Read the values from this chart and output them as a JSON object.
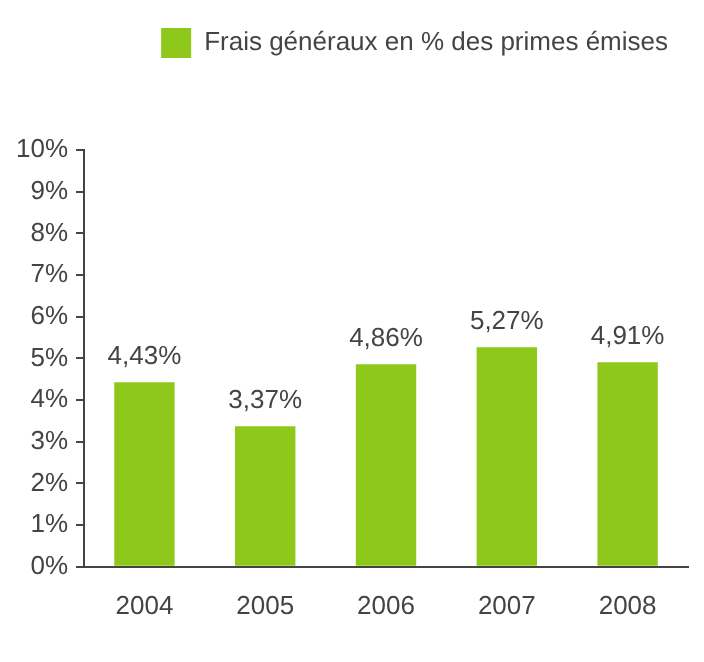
{
  "chart_data": {
    "type": "bar",
    "categories": [
      "2004",
      "2005",
      "2006",
      "2007",
      "2008"
    ],
    "series": [
      {
        "name": "Frais généraux en % des primes émises",
        "color": "#8dc81b",
        "values": [
          4.43,
          3.37,
          4.86,
          5.27,
          4.91
        ],
        "value_labels": [
          "4,43%",
          "3,37%",
          "4,86%",
          "5,27%",
          "4,91%"
        ]
      }
    ],
    "ylim": [
      0,
      10
    ],
    "yticks": [
      {
        "value": 0,
        "label": "0%"
      },
      {
        "value": 1,
        "label": "1%"
      },
      {
        "value": 2,
        "label": "2%"
      },
      {
        "value": 3,
        "label": "3%"
      },
      {
        "value": 4,
        "label": "4%"
      },
      {
        "value": 5,
        "label": "5%"
      },
      {
        "value": 6,
        "label": "6%"
      },
      {
        "value": 7,
        "label": "7%"
      },
      {
        "value": 8,
        "label": "8%"
      },
      {
        "value": 9,
        "label": "9%"
      },
      {
        "value": 10,
        "label": "10%"
      }
    ],
    "grid": false,
    "legend": "top right"
  }
}
